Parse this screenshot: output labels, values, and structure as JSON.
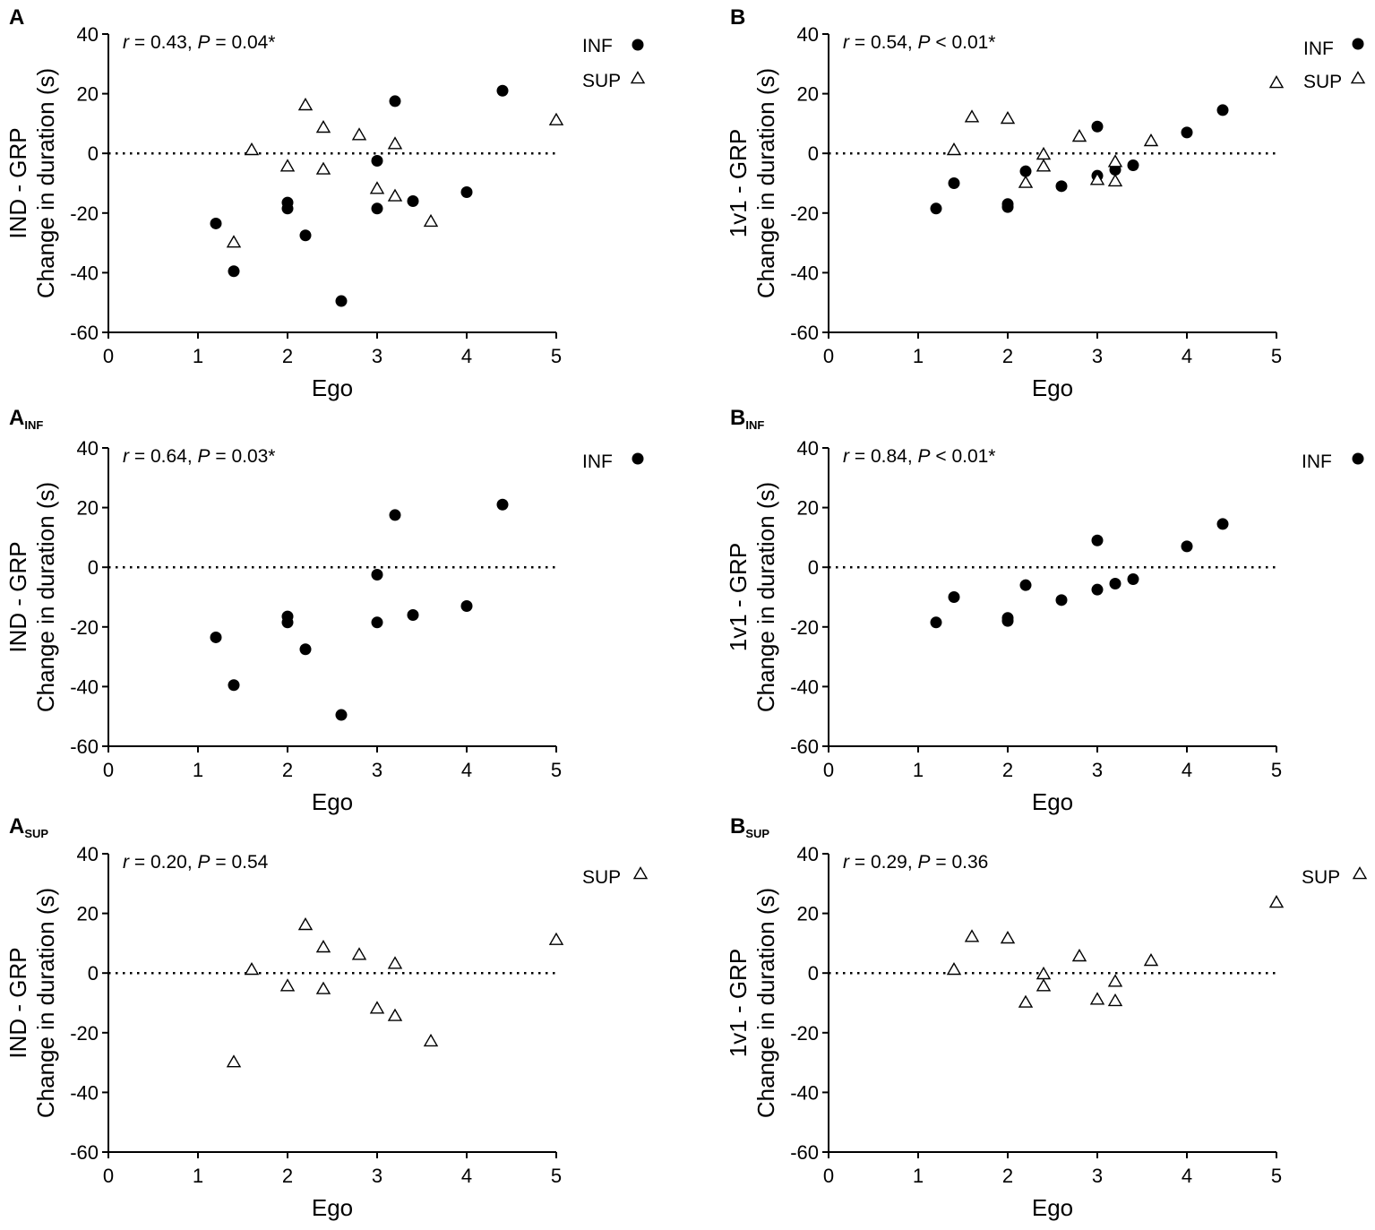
{
  "figure": {
    "panels": [
      {
        "label": "A",
        "label_sub": "",
        "stat_r": "0.43",
        "stat_p_op": "=",
        "stat_p": "0.04*",
        "stat_text": "r = 0.43, P = 0.04*",
        "legend": [
          {
            "name": "INF",
            "marker": "circle"
          },
          {
            "name": "SUP",
            "marker": "triangle"
          }
        ]
      },
      {
        "label": "B",
        "label_sub": "",
        "stat_r": "0.54",
        "stat_p_op": "<",
        "stat_p": "0.01*",
        "stat_text": "r = 0.54, P < 0.01*",
        "legend": [
          {
            "name": "INF",
            "marker": "circle"
          },
          {
            "name": "SUP",
            "marker": "triangle"
          }
        ]
      },
      {
        "label": "A",
        "label_sub": "INF",
        "stat_r": "0.64",
        "stat_p_op": "=",
        "stat_p": "0.03*",
        "stat_text": "r = 0.64, P = 0.03*",
        "legend": [
          {
            "name": "INF",
            "marker": "circle"
          }
        ]
      },
      {
        "label": "B",
        "label_sub": "INF",
        "stat_r": "0.84",
        "stat_p_op": "<",
        "stat_p": "0.01*",
        "stat_text": "r = 0.84, P < 0.01*",
        "legend": [
          {
            "name": "INF",
            "marker": "circle"
          }
        ]
      },
      {
        "label": "A",
        "label_sub": "SUP",
        "stat_r": "0.20",
        "stat_p_op": "=",
        "stat_p": "0.54",
        "stat_text": "r = 0.20, P = 0.54",
        "legend": [
          {
            "name": "SUP",
            "marker": "triangle"
          }
        ]
      },
      {
        "label": "B",
        "label_sub": "SUP",
        "stat_r": "0.29",
        "stat_p_op": "=",
        "stat_p": "0.36",
        "stat_text": "r = 0.29, P = 0.36",
        "legend": [
          {
            "name": "SUP",
            "marker": "triangle"
          }
        ]
      }
    ]
  },
  "chart_data": [
    {
      "type": "scatter",
      "panel": "A",
      "xlabel": "Ego",
      "ylabel_line1": "IND - GRP",
      "ylabel_line2": "Change in duration (s)",
      "xlim": [
        0,
        5
      ],
      "ylim": [
        -60,
        40
      ],
      "xticks": [
        0,
        1,
        2,
        3,
        4,
        5
      ],
      "yticks": [
        -60,
        -40,
        -20,
        0,
        20,
        40
      ],
      "reference_line": {
        "y": 0,
        "style": "dotted"
      },
      "series": [
        {
          "name": "INF",
          "marker": "filled-circle",
          "x": [
            1.2,
            1.4,
            2.0,
            2.0,
            2.2,
            2.6,
            3.0,
            3.0,
            3.2,
            3.4,
            4.0,
            4.4
          ],
          "y": [
            -23.5,
            -39.5,
            -16.5,
            -18.5,
            -27.5,
            -49.5,
            -2.5,
            -18.5,
            17.5,
            -16,
            -13,
            21
          ]
        },
        {
          "name": "SUP",
          "marker": "open-triangle",
          "x": [
            1.4,
            1.6,
            2.0,
            2.2,
            2.4,
            2.4,
            2.8,
            3.0,
            3.2,
            3.2,
            3.6,
            5.0
          ],
          "y": [
            -30,
            1,
            -4.5,
            16,
            8.5,
            -5.5,
            6,
            -12,
            3,
            -14.5,
            -23,
            11
          ]
        }
      ]
    },
    {
      "type": "scatter",
      "panel": "B",
      "xlabel": "Ego",
      "ylabel_line1": "1v1 - GRP",
      "ylabel_line2": "Change in duration (s)",
      "xlim": [
        0,
        5
      ],
      "ylim": [
        -60,
        40
      ],
      "xticks": [
        0,
        1,
        2,
        3,
        4,
        5
      ],
      "yticks": [
        -60,
        -40,
        -20,
        0,
        20,
        40
      ],
      "reference_line": {
        "y": 0,
        "style": "dotted"
      },
      "series": [
        {
          "name": "INF",
          "marker": "filled-circle",
          "x": [
            1.2,
            1.4,
            2.0,
            2.0,
            2.2,
            2.6,
            3.0,
            3.0,
            3.2,
            3.4,
            4.0,
            4.4
          ],
          "y": [
            -18.5,
            -10,
            -17,
            -18,
            -6,
            -11,
            9,
            -7.5,
            -5.5,
            -4,
            7,
            14.5
          ]
        },
        {
          "name": "SUP",
          "marker": "open-triangle",
          "x": [
            1.4,
            1.6,
            2.0,
            2.2,
            2.4,
            2.4,
            2.8,
            3.0,
            3.2,
            3.2,
            3.6,
            5.0
          ],
          "y": [
            1,
            12,
            11.5,
            -10,
            -0.5,
            -4.5,
            5.5,
            -9,
            -3,
            -9.5,
            4,
            23.5
          ]
        }
      ]
    },
    {
      "type": "scatter",
      "panel": "A_INF",
      "xlabel": "Ego",
      "ylabel_line1": "IND - GRP",
      "ylabel_line2": "Change in duration (s)",
      "xlim": [
        0,
        5
      ],
      "ylim": [
        -60,
        40
      ],
      "xticks": [
        0,
        1,
        2,
        3,
        4,
        5
      ],
      "yticks": [
        -60,
        -40,
        -20,
        0,
        20,
        40
      ],
      "reference_line": {
        "y": 0,
        "style": "dotted"
      },
      "series": [
        {
          "name": "INF",
          "marker": "filled-circle",
          "x": [
            1.2,
            1.4,
            2.0,
            2.0,
            2.2,
            2.6,
            3.0,
            3.0,
            3.2,
            3.4,
            4.0,
            4.4
          ],
          "y": [
            -23.5,
            -39.5,
            -16.5,
            -18.5,
            -27.5,
            -49.5,
            -2.5,
            -18.5,
            17.5,
            -16,
            -13,
            21
          ]
        }
      ]
    },
    {
      "type": "scatter",
      "panel": "B_INF",
      "xlabel": "Ego",
      "ylabel_line1": "1v1 - GRP",
      "ylabel_line2": "Change in duration (s)",
      "xlim": [
        0,
        5
      ],
      "ylim": [
        -60,
        40
      ],
      "xticks": [
        0,
        1,
        2,
        3,
        4,
        5
      ],
      "yticks": [
        -60,
        -40,
        -20,
        0,
        20,
        40
      ],
      "reference_line": {
        "y": 0,
        "style": "dotted"
      },
      "series": [
        {
          "name": "INF",
          "marker": "filled-circle",
          "x": [
            1.2,
            1.4,
            2.0,
            2.0,
            2.2,
            2.6,
            3.0,
            3.0,
            3.2,
            3.4,
            4.0,
            4.4
          ],
          "y": [
            -18.5,
            -10,
            -17,
            -18,
            -6,
            -11,
            9,
            -7.5,
            -5.5,
            -4,
            7,
            14.5
          ]
        }
      ]
    },
    {
      "type": "scatter",
      "panel": "A_SUP",
      "xlabel": "Ego",
      "ylabel_line1": "IND - GRP",
      "ylabel_line2": "Change in duration (s)",
      "xlim": [
        0,
        5
      ],
      "ylim": [
        -60,
        40
      ],
      "xticks": [
        0,
        1,
        2,
        3,
        4,
        5
      ],
      "yticks": [
        -60,
        -40,
        -20,
        0,
        20,
        40
      ],
      "reference_line": {
        "y": 0,
        "style": "dotted"
      },
      "series": [
        {
          "name": "SUP",
          "marker": "open-triangle",
          "x": [
            1.4,
            1.6,
            2.0,
            2.2,
            2.4,
            2.4,
            2.8,
            3.0,
            3.2,
            3.2,
            3.6,
            5.0
          ],
          "y": [
            -30,
            1,
            -4.5,
            16,
            8.5,
            -5.5,
            6,
            -12,
            3,
            -14.5,
            -23,
            11
          ]
        }
      ]
    },
    {
      "type": "scatter",
      "panel": "B_SUP",
      "xlabel": "Ego",
      "ylabel_line1": "1v1 - GRP",
      "ylabel_line2": "Change in duration (s)",
      "xlim": [
        0,
        5
      ],
      "ylim": [
        -60,
        40
      ],
      "xticks": [
        0,
        1,
        2,
        3,
        4,
        5
      ],
      "yticks": [
        -60,
        -40,
        -20,
        0,
        20,
        40
      ],
      "reference_line": {
        "y": 0,
        "style": "dotted"
      },
      "series": [
        {
          "name": "SUP",
          "marker": "open-triangle",
          "x": [
            1.4,
            1.6,
            2.0,
            2.2,
            2.4,
            2.4,
            2.8,
            3.0,
            3.2,
            3.2,
            3.6,
            5.0
          ],
          "y": [
            1,
            12,
            11.5,
            -10,
            -0.5,
            -4.5,
            5.5,
            -9,
            -3,
            -9.5,
            4,
            23.5
          ]
        }
      ]
    }
  ]
}
